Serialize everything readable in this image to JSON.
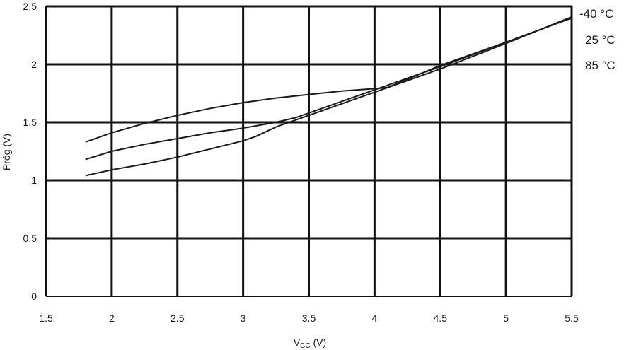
{
  "chart_data": {
    "type": "line",
    "xlabel_main": "V",
    "xlabel_sub": "CC",
    "xlabel_unit": " (V)",
    "ylabel": "Próg (V)",
    "xlim": [
      1.5,
      5.5
    ],
    "ylim": [
      0,
      2.5
    ],
    "xticks": [
      "1.5",
      "2",
      "2.5",
      "3",
      "3.5",
      "4",
      "4.5",
      "5",
      "5.5"
    ],
    "yticks": [
      "0",
      "0.5",
      "1",
      "1.5",
      "2",
      "2.5"
    ],
    "grid": true,
    "legend_position": "right",
    "line_color": "#1a1a1a",
    "series": [
      {
        "name": "-40 °C",
        "x": [
          1.8,
          2.0,
          2.25,
          2.5,
          2.75,
          3.0,
          3.25,
          3.5,
          3.75,
          4.0,
          4.1,
          4.5,
          5.0,
          5.5
        ],
        "y": [
          1.33,
          1.41,
          1.49,
          1.56,
          1.62,
          1.67,
          1.71,
          1.74,
          1.77,
          1.79,
          1.8,
          1.99,
          2.19,
          2.4
        ]
      },
      {
        "name": "25 °C",
        "x": [
          1.8,
          2.0,
          2.25,
          2.5,
          2.75,
          3.0,
          3.25,
          3.4,
          3.6,
          3.8,
          4.0,
          4.25,
          4.5,
          5.0,
          5.5
        ],
        "y": [
          1.18,
          1.25,
          1.31,
          1.36,
          1.41,
          1.45,
          1.5,
          1.54,
          1.62,
          1.7,
          1.78,
          1.88,
          1.98,
          2.19,
          2.4
        ]
      },
      {
        "name": "85 °C",
        "x": [
          1.8,
          2.0,
          2.25,
          2.5,
          2.75,
          3.0,
          3.1,
          3.25,
          3.5,
          3.75,
          4.0,
          4.25,
          4.5,
          5.0,
          5.5
        ],
        "y": [
          1.04,
          1.09,
          1.14,
          1.2,
          1.27,
          1.34,
          1.38,
          1.46,
          1.56,
          1.66,
          1.76,
          1.86,
          1.96,
          2.18,
          2.41
        ]
      }
    ]
  }
}
